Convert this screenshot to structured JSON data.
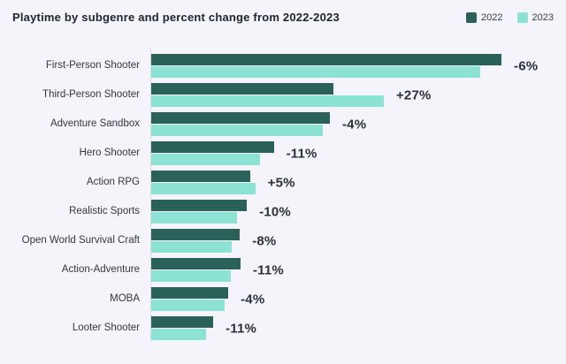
{
  "colors": {
    "background": "#f4f4fa",
    "series_2022": "#2a6159",
    "series_2023": "#8ce3d3",
    "axis_line": "#d9dae2",
    "title_text": "#20262e",
    "label_text": "#33383f"
  },
  "chart_data": {
    "type": "bar",
    "orientation": "horizontal",
    "title": "Playtime by subgenre and percent change from 2022-2023",
    "legend_position": "top-right",
    "value_axis_hidden": true,
    "units": "relative playtime (longest bar = 100, estimated from bar lengths)",
    "categories": [
      "First-Person Shooter",
      "Third-Person Shooter",
      "Adventure Sandbox",
      "Hero Shooter",
      "Action RPG",
      "Realistic Sports",
      "Open World Survival Craft",
      "Action-Adventure",
      "MOBA",
      "Looter Shooter"
    ],
    "series": [
      {
        "name": "2022",
        "color": "#2a6159",
        "values": [
          100,
          52,
          51,
          35,
          28.3,
          27.3,
          25.3,
          25.5,
          22,
          17.7
        ]
      },
      {
        "name": "2023",
        "color": "#8ce3d3",
        "values": [
          94,
          66.4,
          49,
          31.1,
          29.7,
          24.5,
          23,
          22.7,
          21,
          15.7
        ]
      }
    ],
    "percent_change_labels": [
      "-6%",
      "+27%",
      "-4%",
      "-11%",
      "+5%",
      "-10%",
      "-8%",
      "-11%",
      "-4%",
      "-11%"
    ]
  }
}
